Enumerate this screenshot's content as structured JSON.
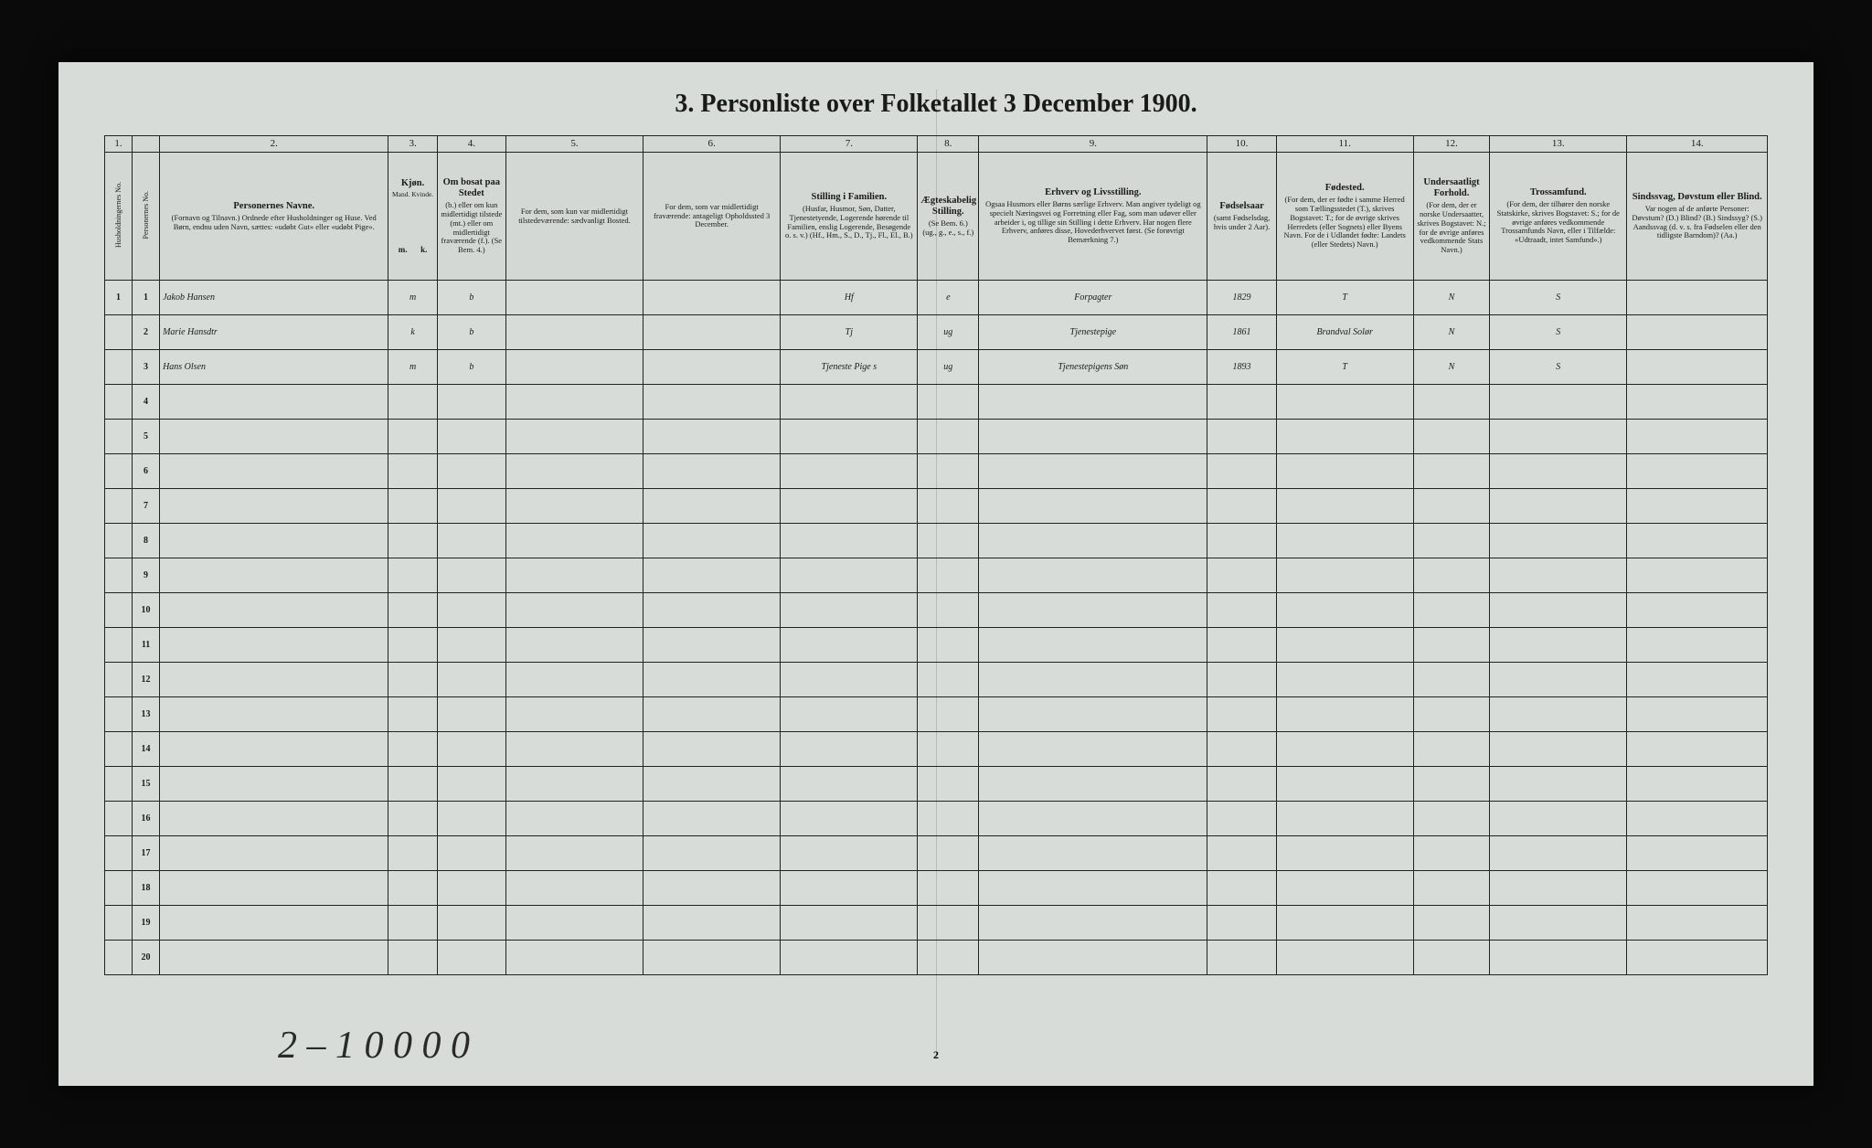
{
  "title": "3.  Personliste over Folketallet 3 December 1900.",
  "columns": {
    "nums": [
      "1.",
      "",
      "2.",
      "3.",
      "4.",
      "5.",
      "6.",
      "7.",
      "8.",
      "9.",
      "10.",
      "11.",
      "12.",
      "13.",
      "14."
    ],
    "headers": [
      {
        "title": "",
        "sub": "Husholdningernes No."
      },
      {
        "title": "",
        "sub": "Personernes No."
      },
      {
        "title": "Personernes Navne.",
        "sub": "(Fornavn og Tilnavn.)\nOrdnede efter Husholdninger og Huse.\nVed Børn, endnu uden Navn, sættes: «udøbt Gut» eller «udøbt Pige»."
      },
      {
        "title": "Kjøn.",
        "sub": "Mand. Kvinde."
      },
      {
        "title": "Om bosat paa Stedet",
        "sub": "(b.) eller om kun midlertidigt tilstede (mt.) eller om midlertidigt fraværende (f.).\n(Se Bem. 4.)"
      },
      {
        "title": "",
        "sub": "For dem, som kun var midlertidigt tilstedeværende:\nsædvanligt Bosted."
      },
      {
        "title": "",
        "sub": "For dem, som var midlertidigt fraværende:\nantageligt Opholdssted 3 December."
      },
      {
        "title": "Stilling i Familien.",
        "sub": "(Husfar, Husmor, Søn, Datter, Tjenestetyende, Logerende hørende til Familien, enslig Logerende, Besøgende o. s. v.)\n(Hf., Hm., S., D., Tj., Fl., El., B.)"
      },
      {
        "title": "Ægteskabelig Stilling.",
        "sub": "(Se Bem. 6.)\n(ug., g., e., s., f.)"
      },
      {
        "title": "Erhverv og Livsstilling.",
        "sub": "Ogsaa Husmors eller Børns særlige Erhverv. Man angiver tydeligt og specielt Næringsvei og Forretning eller Fag, som man udøver eller arbeider i, og tillige sin Stilling i dette Erhverv. Har nogen flere Erhverv, anføres disse, Hovederhvervet først.\n(Se forøvrigt Bemærkning 7.)"
      },
      {
        "title": "Fødselsaar",
        "sub": "(samt Fødselsdag, hvis under 2 Aar)."
      },
      {
        "title": "Fødested.",
        "sub": "(For dem, der er fødte i samme Herred som Tællingsstedet (T.), skrives Bogstavet: T.; for de øvrige skrives Herredets (eller Sognets) eller Byens Navn. For de i Udlandet fødte: Landets (eller Stedets) Navn.)"
      },
      {
        "title": "Undersaatligt Forhold.",
        "sub": "(For dem, der er norske Undersaatter, skrives Bogstavet: N.; for de øvrige anføres vedkommende Stats Navn.)"
      },
      {
        "title": "Trossamfund.",
        "sub": "(For dem, der tilhører den norske Statskirke, skrives Bogstavet: S.; for de øvrige anføres vedkommende Trossamfunds Navn, eller i Tilfælde: «Udtraadt, intet Samfund».)"
      },
      {
        "title": "Sindssvag, Døvstum eller Blind.",
        "sub": "Var nogen af de anførte Personer:\nDøvstum? (D.)\nBlind? (B.)\nSindssyg? (S.)\nAandssvag (d. v. s. fra Fødselen eller den tidligste Barndom)? (Aa.)"
      }
    ]
  },
  "rows": [
    {
      "hh": "1",
      "p": "1",
      "name": "Jakob Hansen",
      "sex": "m",
      "res": "b",
      "c5": "",
      "c6": "",
      "fam": "Hf",
      "mar": "e",
      "occ": "Forpagter",
      "year": "1829",
      "birthplace": "T",
      "nat": "N",
      "rel": "S",
      "c14": ""
    },
    {
      "hh": "",
      "p": "2",
      "name": "Marie Hansdtr",
      "sex": "k",
      "res": "b",
      "c5": "",
      "c6": "",
      "fam": "Tj",
      "mar": "ug",
      "occ": "Tjenestepige",
      "year": "1861",
      "birthplace": "Brandval Solør",
      "nat": "N",
      "rel": "S",
      "c14": ""
    },
    {
      "hh": "",
      "p": "3",
      "name": "Hans Olsen",
      "sex": "m",
      "res": "b",
      "c5": "",
      "c6": "",
      "fam": "Tjeneste Pige s",
      "mar": "ug",
      "occ": "Tjenestepigens Søn",
      "year": "1893",
      "birthplace": "T",
      "nat": "N",
      "rel": "S",
      "c14": ""
    }
  ],
  "empty_rows": [
    4,
    5,
    6,
    7,
    8,
    9,
    10,
    11,
    12,
    13,
    14,
    15,
    16,
    17,
    18,
    19,
    20
  ],
  "footer_note": "2 – 1 0 0 0 0",
  "page_number": "2",
  "col_widths_pct": [
    1.8,
    1.8,
    15,
    3.2,
    4.5,
    9,
    9,
    9,
    4,
    15,
    4.5,
    9,
    5,
    9,
    9.2
  ],
  "colors": {
    "paper": "#d8dcd8",
    "ink": "#1a1a1a",
    "cursive": "#2a2a2a",
    "border": "#222"
  }
}
